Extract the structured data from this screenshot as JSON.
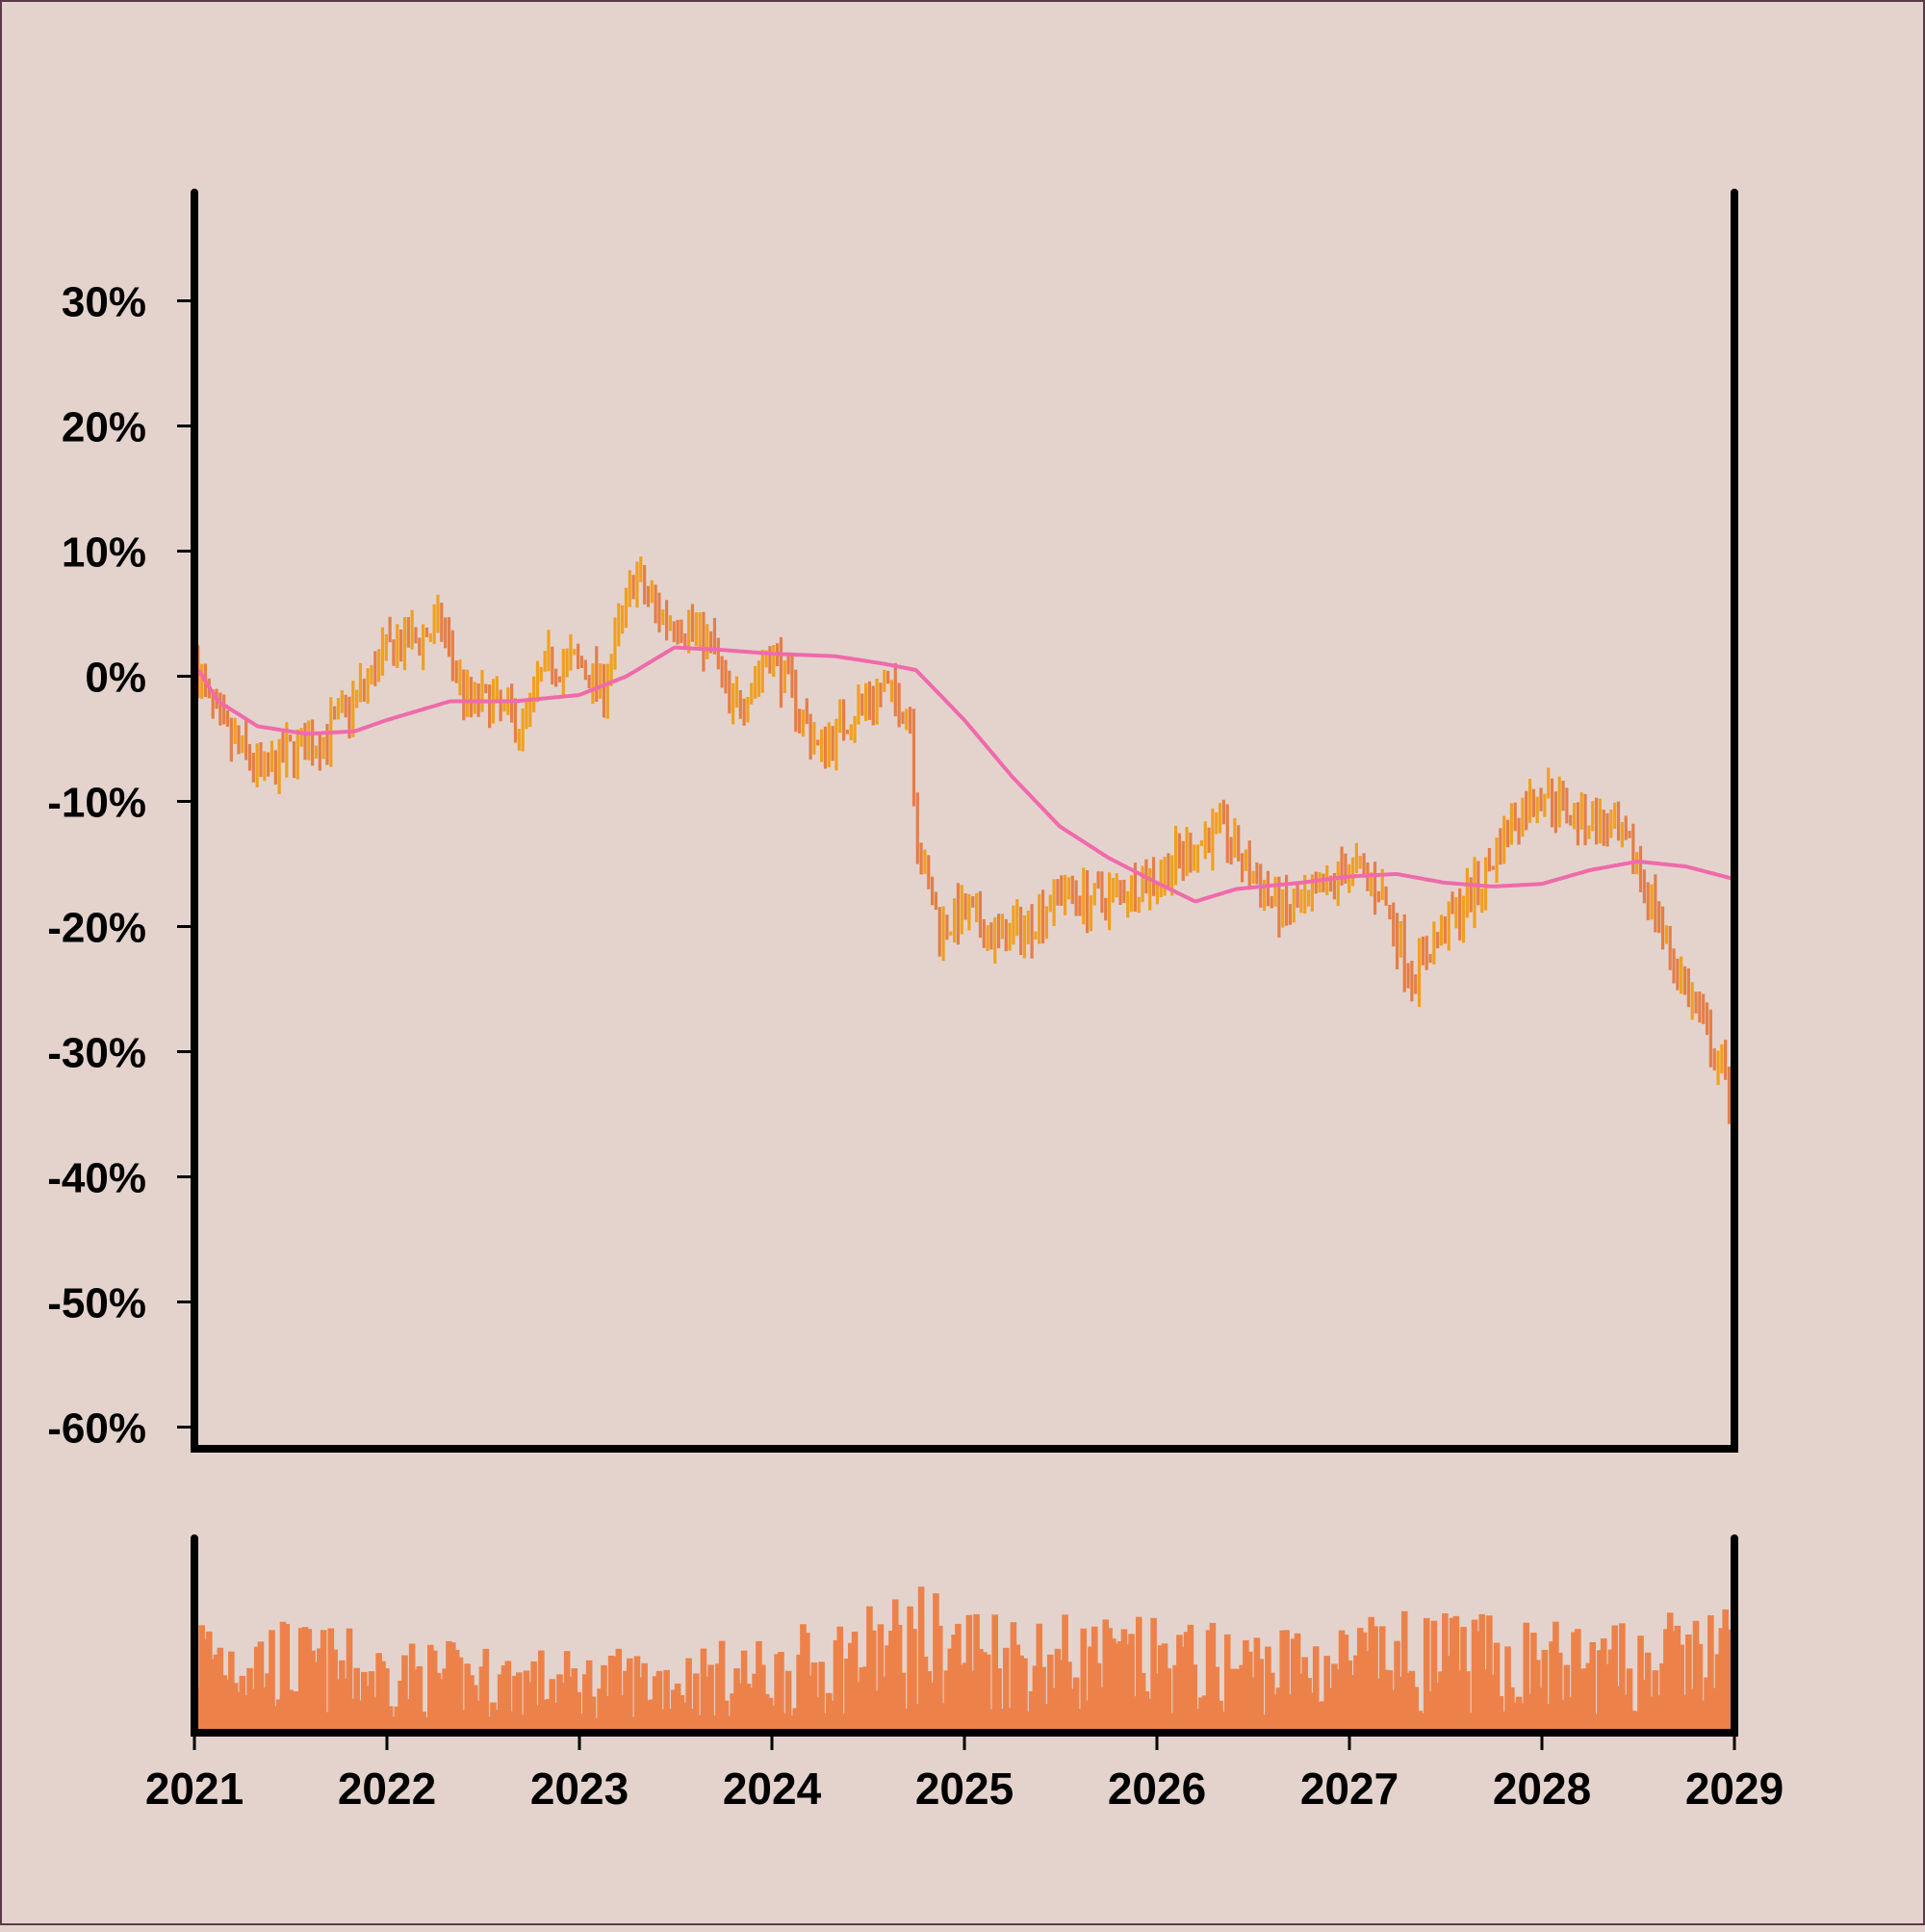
{
  "colors": {
    "background": "#e4d3cd",
    "up_bar": "#f0a020",
    "down_bar": "#e57e46",
    "moving_average": "#f06aaa",
    "volume": "#ec824a",
    "axis": "#000000"
  },
  "chart_data": {
    "type": "ohlc",
    "title": "",
    "xlabel": "",
    "ylabel": "",
    "x_tick_labels": [
      "2021",
      "2022",
      "2023",
      "2024",
      "2025",
      "2026",
      "2027",
      "2028",
      "2029"
    ],
    "y_tick_labels": [
      "30%",
      "20%",
      "10%",
      "0%",
      "-10%",
      "-20%",
      "-30%",
      "-40%",
      "-50%",
      "-60%"
    ],
    "y_tick_values": [
      30,
      20,
      10,
      0,
      -10,
      -20,
      -30,
      -40,
      -50,
      -60
    ],
    "ylim": [
      -61.5,
      38.5
    ],
    "xlim": [
      "2021-01-01",
      "2029-01-01"
    ],
    "grid": false,
    "legend": "none",
    "series": [
      {
        "kind": "ohlc",
        "interval": "weekly",
        "note_units": "percent change",
        "anchors": [
          [
            "2021-01-01",
            1
          ],
          [
            "2021-02-15",
            -4
          ],
          [
            "2021-04-01",
            -6
          ],
          [
            "2021-05-15",
            -8
          ],
          [
            "2021-07-01",
            -6
          ],
          [
            "2021-09-01",
            -5
          ],
          [
            "2021-11-01",
            -2
          ],
          [
            "2022-01-01",
            2
          ],
          [
            "2022-03-01",
            3
          ],
          [
            "2022-04-15",
            4
          ],
          [
            "2022-06-01",
            -2
          ],
          [
            "2022-07-15",
            -2
          ],
          [
            "2022-09-15",
            -4
          ],
          [
            "2022-11-01",
            1
          ],
          [
            "2023-01-01",
            1
          ],
          [
            "2023-02-15",
            -1
          ],
          [
            "2023-04-15",
            8
          ],
          [
            "2023-06-01",
            5
          ],
          [
            "2023-08-01",
            4
          ],
          [
            "2023-09-15",
            2
          ],
          [
            "2023-10-15",
            -3
          ],
          [
            "2023-12-01",
            0
          ],
          [
            "2024-01-01",
            2
          ],
          [
            "2024-02-15",
            -2
          ],
          [
            "2024-04-01",
            -6
          ],
          [
            "2024-06-01",
            -3
          ],
          [
            "2024-08-01",
            -1
          ],
          [
            "2024-09-20",
            -3
          ],
          [
            "2024-10-05",
            -14
          ],
          [
            "2024-11-15",
            -20
          ],
          [
            "2025-01-01",
            -19
          ],
          [
            "2025-03-01",
            -21
          ],
          [
            "2025-05-01",
            -20
          ],
          [
            "2025-07-01",
            -17
          ],
          [
            "2025-09-01",
            -18
          ],
          [
            "2025-11-01",
            -17
          ],
          [
            "2026-01-01",
            -16
          ],
          [
            "2026-03-01",
            -14
          ],
          [
            "2026-05-01",
            -12
          ],
          [
            "2026-07-01",
            -16
          ],
          [
            "2026-09-01",
            -19
          ],
          [
            "2026-11-01",
            -18
          ],
          [
            "2027-01-01",
            -15
          ],
          [
            "2027-03-01",
            -17
          ],
          [
            "2027-05-01",
            -24
          ],
          [
            "2027-07-01",
            -20
          ],
          [
            "2027-09-01",
            -17
          ],
          [
            "2027-11-01",
            -12
          ],
          [
            "2028-01-01",
            -9
          ],
          [
            "2028-03-01",
            -11
          ],
          [
            "2028-05-01",
            -12
          ],
          [
            "2028-07-01",
            -15
          ],
          [
            "2028-09-01",
            -22
          ],
          [
            "2028-11-01",
            -28
          ],
          [
            "2028-12-31",
            -34
          ]
        ]
      },
      {
        "kind": "line",
        "points": [
          [
            "2021-01-01",
            1
          ],
          [
            "2021-02-15",
            -2
          ],
          [
            "2021-05-01",
            -4
          ],
          [
            "2021-08-01",
            -4.6
          ],
          [
            "2021-11-01",
            -4.4
          ],
          [
            "2022-01-01",
            -3.5
          ],
          [
            "2022-05-01",
            -2
          ],
          [
            "2022-09-01",
            -2
          ],
          [
            "2023-01-01",
            -1.5
          ],
          [
            "2023-04-01",
            0
          ],
          [
            "2023-07-01",
            2.3
          ],
          [
            "2023-10-01",
            2.1
          ],
          [
            "2024-01-01",
            1.8
          ],
          [
            "2024-05-01",
            1.6
          ],
          [
            "2024-08-01",
            1
          ],
          [
            "2024-10-01",
            0.5
          ],
          [
            "2025-01-01",
            -3.5
          ],
          [
            "2025-04-01",
            -8
          ],
          [
            "2025-07-01",
            -12
          ],
          [
            "2025-10-01",
            -14.5
          ],
          [
            "2026-01-01",
            -16.5
          ],
          [
            "2026-03-15",
            -18
          ],
          [
            "2026-06-01",
            -17
          ],
          [
            "2026-10-01",
            -16.5
          ],
          [
            "2027-01-01",
            -16
          ],
          [
            "2027-04-01",
            -15.8
          ],
          [
            "2027-07-01",
            -16.5
          ],
          [
            "2027-10-01",
            -16.8
          ],
          [
            "2028-01-01",
            -16.6
          ],
          [
            "2028-04-01",
            -15.5
          ],
          [
            "2028-07-01",
            -14.8
          ],
          [
            "2028-10-01",
            -15.2
          ],
          [
            "2028-12-31",
            -16.2
          ]
        ]
      }
    ],
    "volume": {
      "unlabeled_axis": true,
      "level_profile": [
        [
          "2021-01-01",
          0.5
        ],
        [
          "2022-01-01",
          0.35
        ],
        [
          "2023-01-01",
          0.3
        ],
        [
          "2024-01-01",
          0.35
        ],
        [
          "2024-10-01",
          0.55
        ],
        [
          "2025-06-01",
          0.45
        ],
        [
          "2026-06-01",
          0.4
        ],
        [
          "2027-06-01",
          0.45
        ],
        [
          "2028-06-01",
          0.4
        ],
        [
          "2028-12-31",
          0.5
        ]
      ]
    }
  }
}
